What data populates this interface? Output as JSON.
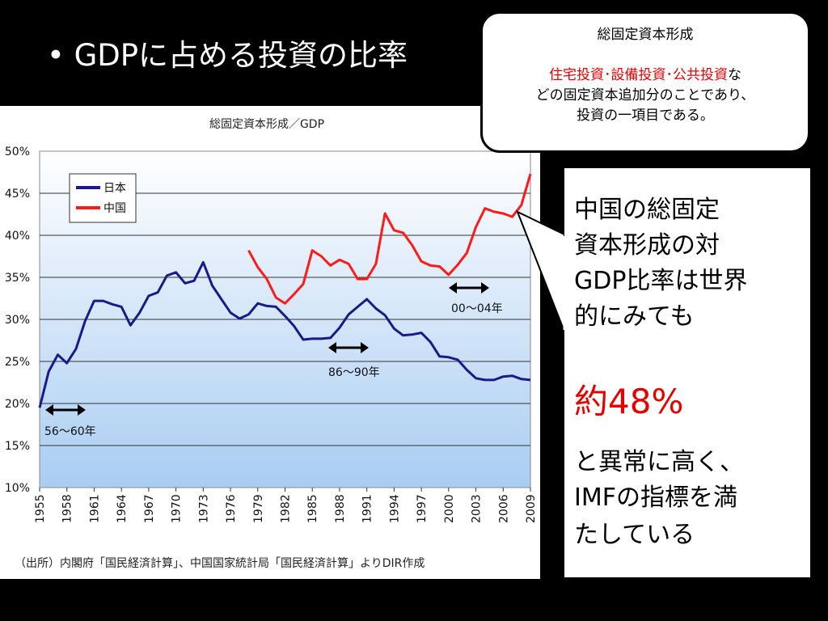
{
  "slide": {
    "title": "• GDPに占める投資の比率"
  },
  "callout": {
    "heading": "総固定資本形成",
    "line2_red": "住宅投資･設備投資･公共投資",
    "line2_black": "な",
    "line3": "どの固定資本追加分のことであり、",
    "line4": "投資の一項目である。"
  },
  "side": {
    "line1": " 中国の総固定",
    "line2": "資本形成の対",
    "line3": "GDP比率は世界",
    "line4": "的にみても",
    "highlight": "約48%",
    "line5": "と異常に高く、",
    "line6": "IMFの指標を満",
    "line7": "たしている"
  },
  "chart_data": {
    "type": "line",
    "title": "総固定資本形成／GDP",
    "source": "（出所）内閣府「国民経済計算」、中国国家統計局「国民経済計算」よりDIR作成",
    "ylim": [
      10,
      50
    ],
    "yticks": [
      "10%",
      "15%",
      "20%",
      "25%",
      "30%",
      "35%",
      "40%",
      "45%",
      "50%"
    ],
    "xlim": [
      1955,
      2009
    ],
    "xticks": [
      "1955",
      "1958",
      "1961",
      "1964",
      "1967",
      "1970",
      "1973",
      "1976",
      "1979",
      "1982",
      "1985",
      "1988",
      "1991",
      "1994",
      "1997",
      "2000",
      "2003",
      "2006",
      "2009"
    ],
    "legend_position": "top-left",
    "grid": true,
    "series": [
      {
        "name": "日本",
        "color": "#1a1a8c",
        "x": [
          1955,
          1956,
          1957,
          1958,
          1959,
          1960,
          1961,
          1962,
          1963,
          1964,
          1965,
          1966,
          1967,
          1968,
          1969,
          1970,
          1971,
          1972,
          1973,
          1974,
          1975,
          1976,
          1977,
          1978,
          1979,
          1980,
          1981,
          1982,
          1983,
          1984,
          1985,
          1986,
          1987,
          1988,
          1989,
          1990,
          1991,
          1992,
          1993,
          1994,
          1995,
          1996,
          1997,
          1998,
          1999,
          2000,
          2001,
          2002,
          2003,
          2004,
          2005,
          2006,
          2007,
          2008,
          2009
        ],
        "values": [
          19.5,
          23.8,
          25.8,
          24.8,
          26.5,
          29.8,
          32.2,
          32.2,
          31.8,
          31.5,
          29.3,
          30.8,
          32.8,
          33.2,
          35.2,
          35.6,
          34.3,
          34.6,
          36.8,
          34.0,
          32.4,
          30.8,
          30.1,
          30.6,
          31.9,
          31.6,
          31.5,
          30.4,
          29.2,
          27.6,
          27.7,
          27.7,
          27.8,
          29.0,
          30.6,
          31.5,
          32.4,
          31.3,
          30.5,
          28.9,
          28.1,
          28.2,
          28.4,
          27.3,
          25.6,
          25.5,
          25.2,
          24.0,
          23.0,
          22.8,
          22.8,
          23.2,
          23.3,
          22.9,
          22.8
        ]
      },
      {
        "name": "中国",
        "color": "#ff1a1a",
        "x": [
          1978,
          1979,
          1980,
          1981,
          1982,
          1983,
          1984,
          1985,
          1986,
          1987,
          1988,
          1989,
          1990,
          1991,
          1992,
          1993,
          1994,
          1995,
          1996,
          1997,
          1998,
          1999,
          2000,
          2001,
          2002,
          2003,
          2004,
          2005,
          2006,
          2007,
          2008,
          2009
        ],
        "values": [
          38.2,
          36.2,
          34.8,
          32.6,
          31.9,
          33.0,
          34.2,
          38.2,
          37.5,
          36.4,
          37.1,
          36.6,
          34.8,
          34.8,
          36.6,
          42.6,
          40.6,
          40.3,
          38.8,
          36.9,
          36.4,
          36.3,
          35.3,
          36.5,
          37.9,
          41.0,
          43.2,
          42.8,
          42.6,
          42.2,
          43.6,
          47.3
        ]
      }
    ],
    "annotations": [
      "56～60年",
      "86～90年",
      "00～04年"
    ]
  }
}
